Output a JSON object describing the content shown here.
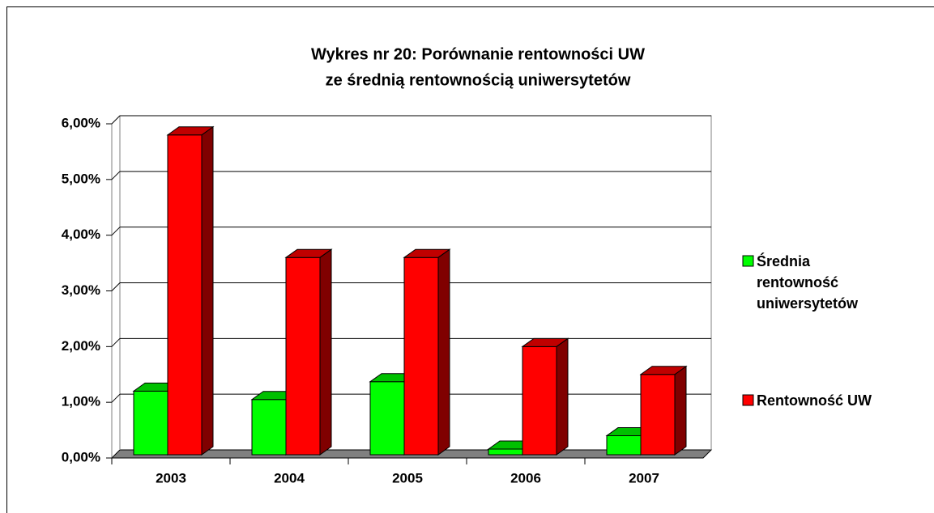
{
  "chart_data": {
    "type": "bar3d",
    "title": [
      "Wykres nr 20: Porównanie rentowności UW",
      "ze średnią rentownością uniwersytetów"
    ],
    "categories": [
      "2003",
      "2004",
      "2005",
      "2006",
      "2007"
    ],
    "series": [
      {
        "name": "Średnia rentowność uniwersytetów",
        "color": "#00ff00",
        "side": "#008000",
        "top": "#00c000",
        "values": [
          1.2,
          1.05,
          1.37,
          0.16,
          0.4
        ]
      },
      {
        "name": "Rentowność UW",
        "color": "#ff0000",
        "side": "#800000",
        "top": "#c00000",
        "values": [
          5.8,
          3.6,
          3.6,
          2.0,
          1.5
        ]
      }
    ],
    "ylim": [
      0,
      6
    ],
    "yticks": [
      {
        "value": 0,
        "label": "0,00%"
      },
      {
        "value": 1,
        "label": "1,00%"
      },
      {
        "value": 2,
        "label": "2,00%"
      },
      {
        "value": 3,
        "label": "3,00%"
      },
      {
        "value": 4,
        "label": "4,00%"
      },
      {
        "value": 5,
        "label": "5,00%"
      },
      {
        "value": 6,
        "label": "6,00%"
      }
    ],
    "grid": true,
    "legend": "right"
  }
}
